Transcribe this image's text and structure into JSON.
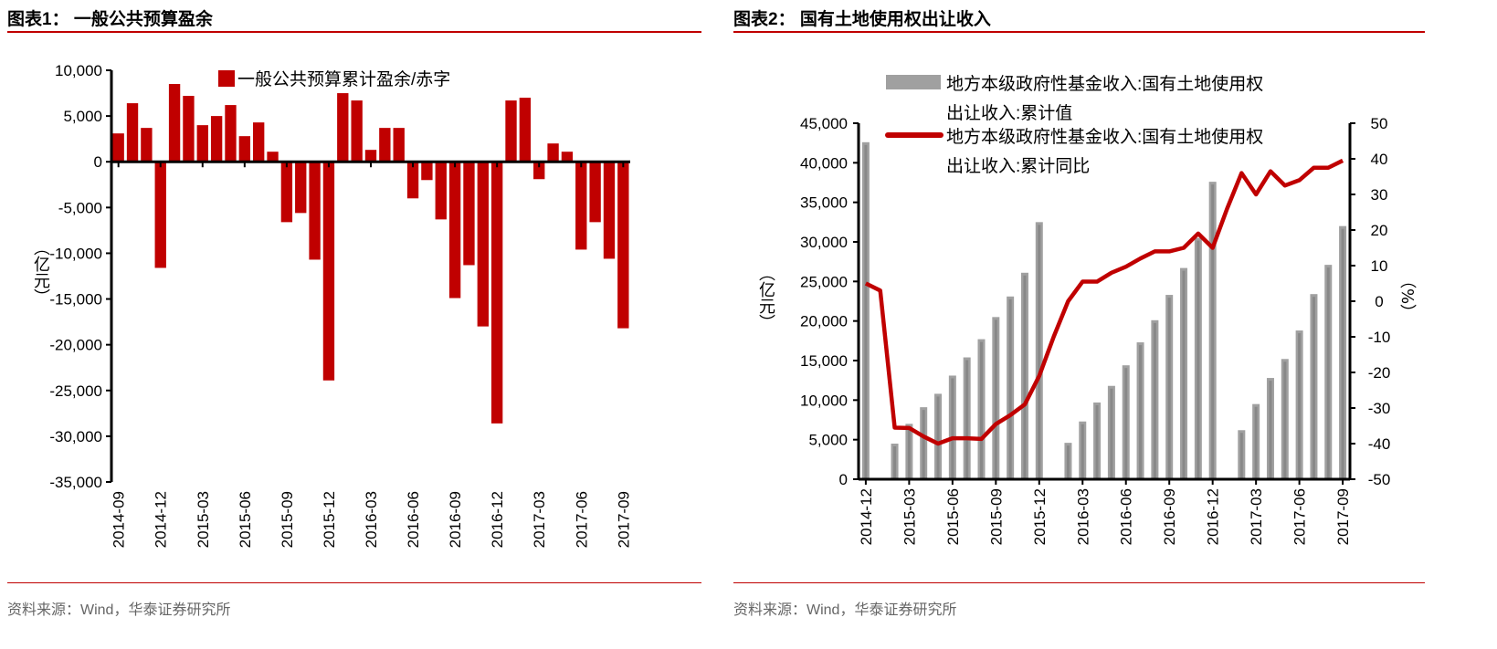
{
  "panels": [
    {
      "title": "图表1：  一般公共预算盈余",
      "source": "资料来源：Wind，华泰证券研究所"
    },
    {
      "title": "图表2：  国有土地使用权出让收入",
      "source": "资料来源：Wind，华泰证券研究所"
    }
  ],
  "colors": {
    "accent": "#c00000",
    "bar2": "#a0a0a0"
  },
  "chart_data": [
    {
      "type": "bar",
      "ylabel": "（亿元）",
      "ylim": [
        -35000,
        10000
      ],
      "yticks": [
        10000,
        5000,
        0,
        -5000,
        -10000,
        -15000,
        -20000,
        -25000,
        -30000,
        -35000
      ],
      "ytick_labels": [
        "10,000",
        "5,000",
        "0",
        "-5,000",
        "-10,000",
        "-15,000",
        "-20,000",
        "-25,000",
        "-30,000",
        "-35,000"
      ],
      "legend": "top",
      "categories": [
        "2014-09",
        "2014-10",
        "2014-11",
        "2014-12",
        "2015-01",
        "2015-02",
        "2015-03",
        "2015-04",
        "2015-05",
        "2015-06",
        "2015-07",
        "2015-08",
        "2015-09",
        "2015-10",
        "2015-11",
        "2015-12",
        "2016-01",
        "2016-02",
        "2016-03",
        "2016-04",
        "2016-05",
        "2016-06",
        "2016-07",
        "2016-08",
        "2016-09",
        "2016-10",
        "2016-11",
        "2016-12",
        "2017-01",
        "2017-02",
        "2017-03",
        "2017-04",
        "2017-05",
        "2017-06",
        "2017-07",
        "2017-08",
        "2017-09"
      ],
      "xtick_labels": [
        "2014-09",
        "2014-12",
        "2015-03",
        "2015-06",
        "2015-09",
        "2015-12",
        "2016-03",
        "2016-06",
        "2016-09",
        "2016-12",
        "2017-03",
        "2017-06",
        "2017-09"
      ],
      "series": [
        {
          "name": "一般公共预算累计盈余/赤字",
          "color": "#c00000",
          "values": [
            3100,
            6400,
            3700,
            -11600,
            8500,
            7200,
            4000,
            5000,
            6200,
            2800,
            4300,
            1100,
            -6600,
            -5600,
            -10700,
            -23900,
            7500,
            6700,
            1300,
            3700,
            3700,
            -4000,
            -2000,
            -6300,
            -14900,
            -11300,
            -18000,
            -28600,
            6700,
            7000,
            -1900,
            2000,
            1100,
            -9600,
            -6600,
            -10600,
            -18200
          ]
        }
      ]
    },
    {
      "type": "bar+line",
      "ylabel": "（亿元）",
      "y2label": "（%）",
      "ylim": [
        0,
        45000
      ],
      "y2lim": [
        -50,
        50
      ],
      "yticks": [
        0,
        5000,
        10000,
        15000,
        20000,
        25000,
        30000,
        35000,
        40000,
        45000
      ],
      "ytick_labels": [
        "0",
        "5,000",
        "10,000",
        "15,000",
        "20,000",
        "25,000",
        "30,000",
        "35,000",
        "40,000",
        "45,000"
      ],
      "y2ticks": [
        -50,
        -40,
        -30,
        -20,
        -10,
        0,
        10,
        20,
        30,
        40,
        50
      ],
      "legend": "top",
      "categories": [
        "2014-12",
        "2015-01",
        "2015-02",
        "2015-03",
        "2015-04",
        "2015-05",
        "2015-06",
        "2015-07",
        "2015-08",
        "2015-09",
        "2015-10",
        "2015-11",
        "2015-12",
        "2016-01",
        "2016-02",
        "2016-03",
        "2016-04",
        "2016-05",
        "2016-06",
        "2016-07",
        "2016-08",
        "2016-09",
        "2016-10",
        "2016-11",
        "2016-12",
        "2017-01",
        "2017-02",
        "2017-03",
        "2017-04",
        "2017-05",
        "2017-06",
        "2017-07",
        "2017-08",
        "2017-09"
      ],
      "xtick_labels": [
        "2014-12",
        "2015-03",
        "2015-06",
        "2015-09",
        "2015-12",
        "2016-03",
        "2016-06",
        "2016-09",
        "2016-12",
        "2017-03",
        "2017-06",
        "2017-09"
      ],
      "series": [
        {
          "name": "地方本级政府性基金收入:国有土地使用权出让收入:累计值",
          "legend_lines": [
            "地方本级政府性基金收入:国有土地使用权",
            "出让收入:累计值"
          ],
          "axis": "left",
          "kind": "bar",
          "color": "#a0a0a0",
          "values": [
            42600,
            null,
            4500,
            7000,
            9100,
            10800,
            13100,
            15400,
            17700,
            20500,
            23100,
            26100,
            32500,
            null,
            4600,
            7300,
            9700,
            11800,
            14400,
            17300,
            20100,
            23300,
            26700,
            30500,
            37600,
            null,
            6200,
            9500,
            12800,
            15200,
            18800,
            23400,
            27100,
            32000
          ]
        },
        {
          "name": "地方本级政府性基金收入:国有土地使用权出让收入:累计同比",
          "legend_lines": [
            "地方本级政府性基金收入:国有土地使用权",
            "出让收入:累计同比"
          ],
          "axis": "right",
          "kind": "line",
          "color": "#c00000",
          "values": [
            5,
            3,
            -35.5,
            -35.6,
            -38,
            -40,
            -38.5,
            -38.5,
            -38.7,
            -34.5,
            -32,
            -29,
            -21,
            -10,
            0,
            5.5,
            5.5,
            8,
            9.7,
            12,
            14,
            14,
            15,
            19,
            15,
            26,
            36,
            30,
            36.5,
            32.5,
            34,
            37.5,
            37.5,
            39.5
          ]
        }
      ]
    }
  ]
}
